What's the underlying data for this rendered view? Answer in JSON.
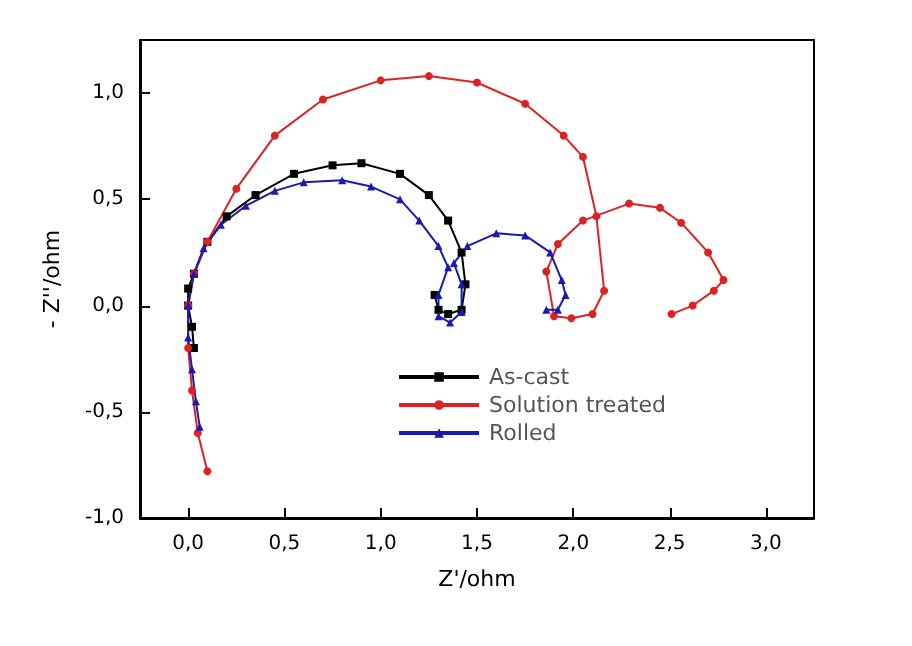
{
  "chart_data": {
    "type": "line",
    "xlabel": "Z'/ohm",
    "ylabel": "- Z''/ohm",
    "xlim": [
      -0.25,
      3.25
    ],
    "ylim": [
      -1.0,
      1.25
    ],
    "xticks": [
      {
        "value": 0,
        "label": "0,0"
      },
      {
        "value": 0.5,
        "label": "0,5"
      },
      {
        "value": 1,
        "label": "1,0"
      },
      {
        "value": 1.5,
        "label": "1,5"
      },
      {
        "value": 2,
        "label": "2,0"
      },
      {
        "value": 2.5,
        "label": "2,5"
      },
      {
        "value": 3,
        "label": "3,0"
      }
    ],
    "yticks": [
      {
        "value": -1,
        "label": "-1,0"
      },
      {
        "value": -0.5,
        "label": "-0,5"
      },
      {
        "value": 0,
        "label": "0,0"
      },
      {
        "value": 0.5,
        "label": "0,5"
      },
      {
        "value": 1,
        "label": "1,0"
      }
    ],
    "legend": "bottom right",
    "grid": false,
    "series": [
      {
        "name": "As-cast",
        "color": "#000000",
        "marker": "square",
        "x": [
          0.03,
          0.02,
          0.0,
          0.0,
          0.03,
          0.1,
          0.2,
          0.35,
          0.55,
          0.75,
          0.9,
          1.1,
          1.25,
          1.35,
          1.42,
          1.44,
          1.42,
          1.35,
          1.3,
          1.28
        ],
        "values": [
          -0.2,
          -0.1,
          0.0,
          0.08,
          0.15,
          0.3,
          0.42,
          0.52,
          0.62,
          0.66,
          0.67,
          0.62,
          0.52,
          0.4,
          0.25,
          0.1,
          -0.02,
          -0.04,
          -0.02,
          0.05
        ]
      },
      {
        "name": "Solution treated",
        "color": "#dd2222",
        "marker": "circle",
        "x": [
          0.1,
          0.05,
          0.02,
          0.0,
          0.0,
          0.03,
          0.1,
          0.25,
          0.45,
          0.7,
          1.0,
          1.25,
          1.5,
          1.75,
          1.95,
          2.05,
          2.12,
          2.16,
          2.1,
          1.99,
          1.9,
          1.86,
          1.92,
          2.05,
          2.29,
          2.45,
          2.56,
          2.7,
          2.78,
          2.73,
          2.62,
          2.51
        ],
        "values": [
          -0.78,
          -0.6,
          -0.4,
          -0.2,
          0.0,
          0.15,
          0.3,
          0.55,
          0.8,
          0.97,
          1.06,
          1.08,
          1.05,
          0.95,
          0.8,
          0.7,
          0.42,
          0.07,
          -0.04,
          -0.06,
          -0.05,
          0.16,
          0.29,
          0.4,
          0.48,
          0.46,
          0.39,
          0.25,
          0.12,
          0.07,
          0.0,
          -0.04
        ]
      },
      {
        "name": "Rolled",
        "color": "#1a1ab0",
        "marker": "triangle",
        "x": [
          0.06,
          0.04,
          0.02,
          0.0,
          0.0,
          0.03,
          0.08,
          0.17,
          0.3,
          0.45,
          0.6,
          0.8,
          0.95,
          1.1,
          1.2,
          1.3,
          1.35,
          1.3,
          1.3,
          1.36,
          1.42,
          1.42,
          1.38,
          1.45,
          1.6,
          1.75,
          1.88,
          1.94,
          1.96,
          1.92,
          1.86
        ],
        "values": [
          -0.57,
          -0.45,
          -0.3,
          -0.15,
          0.0,
          0.15,
          0.27,
          0.38,
          0.47,
          0.54,
          0.58,
          0.59,
          0.56,
          0.5,
          0.4,
          0.28,
          0.18,
          0.05,
          -0.05,
          -0.08,
          -0.03,
          0.1,
          0.2,
          0.28,
          0.34,
          0.33,
          0.25,
          0.12,
          0.05,
          -0.02,
          -0.02
        ]
      }
    ]
  }
}
